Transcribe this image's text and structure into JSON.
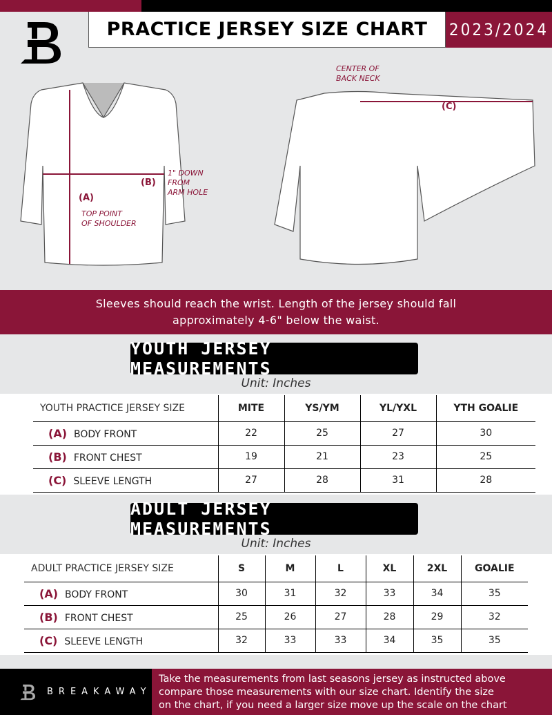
{
  "header": {
    "title": "PRACTICE JERSEY SIZE CHART",
    "season": "2023/2024"
  },
  "diagram": {
    "label_a": "(A)",
    "label_b": "(B)",
    "label_c": "(C)",
    "note_top_point": [
      "TOP POINT",
      "OF SHOULDER"
    ],
    "note_down": [
      "1\" DOWN",
      "FROM",
      "ARM HOLE"
    ],
    "note_center": [
      "CENTER OF",
      "BACK NECK"
    ]
  },
  "banner": [
    "Sleeves should reach the wrist. Length of the jersey should fall",
    "approximately 4-6\" below the waist."
  ],
  "youth": {
    "title": "YOUTH JERSEY MEASUREMENTS",
    "unit": "Unit: Inches",
    "header_label": "YOUTH PRACTICE JERSEY SIZE",
    "sizes": [
      "MITE",
      "YS/YM",
      "YL/YXL",
      "YTH GOALIE"
    ],
    "rows": [
      {
        "code": "(A)",
        "label": "BODY FRONT",
        "values": [
          "22",
          "25",
          "27",
          "30"
        ]
      },
      {
        "code": "(B)",
        "label": "FRONT CHEST",
        "values": [
          "19",
          "21",
          "23",
          "25"
        ]
      },
      {
        "code": "(C)",
        "label": "SLEEVE LENGTH",
        "values": [
          "27",
          "28",
          "31",
          "28"
        ]
      }
    ]
  },
  "adult": {
    "title": "ADULT JERSEY MEASUREMENTS",
    "unit": "Unit: Inches",
    "header_label": "ADULT PRACTICE JERSEY SIZE",
    "sizes": [
      "S",
      "M",
      "L",
      "XL",
      "2XL",
      "GOALIE"
    ],
    "rows": [
      {
        "code": "(A)",
        "label": "BODY FRONT",
        "values": [
          "30",
          "31",
          "32",
          "33",
          "34",
          "35"
        ]
      },
      {
        "code": "(B)",
        "label": "FRONT CHEST",
        "values": [
          "25",
          "26",
          "27",
          "28",
          "29",
          "32"
        ]
      },
      {
        "code": "(C)",
        "label": "SLEEVE LENGTH",
        "values": [
          "32",
          "33",
          "33",
          "34",
          "35",
          "35"
        ]
      }
    ]
  },
  "footer": {
    "brand": "BREAKAWAY",
    "text": [
      "Take the measurements from last seasons jersey as instructed above",
      "compare those measurements  with our size chart. Identify the size",
      "on the chart, if you need a larger size move up the scale on the chart"
    ]
  },
  "colors": {
    "accent": "#8a1538",
    "background": "#e6e7e8"
  }
}
